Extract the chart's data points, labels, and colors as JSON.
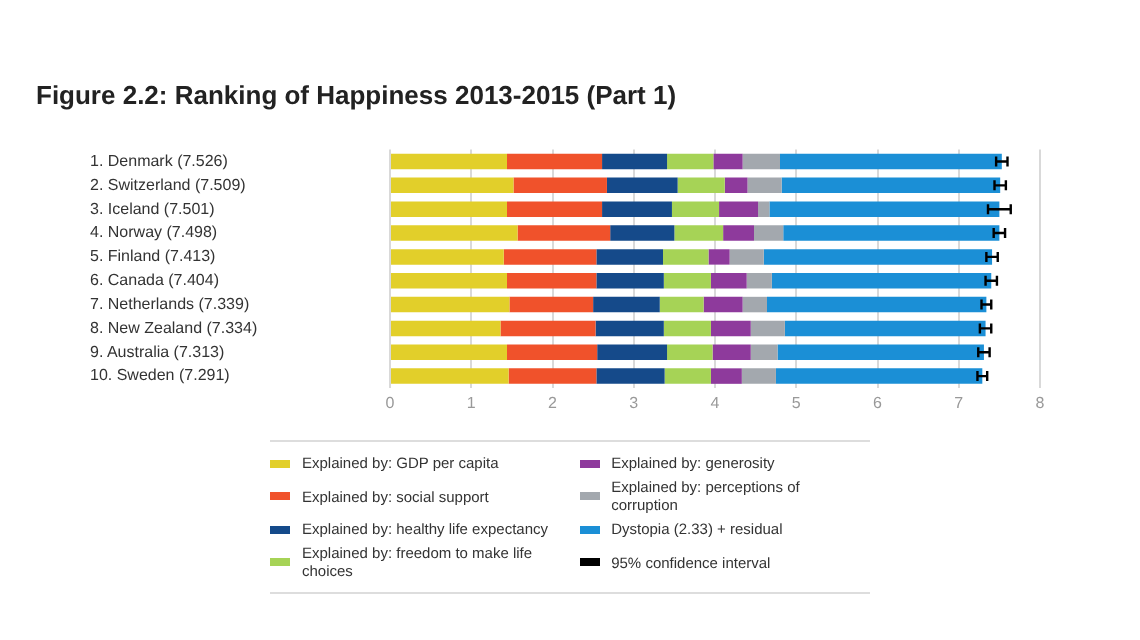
{
  "chart_data": {
    "type": "bar",
    "orientation": "horizontal",
    "stacked": true,
    "title": "Figure 2.2: Ranking of Happiness 2013-2015 (Part 1)",
    "categories": [
      "1. Denmark (7.526)",
      "2. Switzerland (7.509)",
      "3. Iceland (7.501)",
      "4. Norway (7.498)",
      "5. Finland (7.413)",
      "6. Canada (7.404)",
      "7. Netherlands (7.339)",
      "8. New Zealand (7.334)",
      "9. Australia (7.313)",
      "10. Sweden (7.291)"
    ],
    "series": [
      {
        "name": "Explained by: GDP per capita",
        "color": "#e2cf2a",
        "values": [
          1.44,
          1.52,
          1.44,
          1.57,
          1.4,
          1.44,
          1.47,
          1.36,
          1.44,
          1.46
        ]
      },
      {
        "name": "Explained by: social support",
        "color": "#f0522b",
        "values": [
          1.17,
          1.15,
          1.17,
          1.14,
          1.14,
          1.1,
          1.03,
          1.17,
          1.11,
          1.08
        ]
      },
      {
        "name": "Explained by: healthy life expectancy",
        "color": "#154a8a",
        "values": [
          0.8,
          0.87,
          0.86,
          0.79,
          0.82,
          0.83,
          0.82,
          0.84,
          0.86,
          0.84
        ]
      },
      {
        "name": "Explained by: freedom to make life choices",
        "color": "#a6d356",
        "values": [
          0.57,
          0.58,
          0.58,
          0.6,
          0.56,
          0.58,
          0.54,
          0.58,
          0.56,
          0.57
        ]
      },
      {
        "name": "Explained by: generosity",
        "color": "#8e3a9c",
        "values": [
          0.36,
          0.28,
          0.48,
          0.38,
          0.26,
          0.44,
          0.48,
          0.49,
          0.47,
          0.38
        ]
      },
      {
        "name": "Explained by: perceptions of corruption",
        "color": "#a3a8ae",
        "values": [
          0.46,
          0.42,
          0.14,
          0.36,
          0.42,
          0.31,
          0.3,
          0.42,
          0.33,
          0.42
        ]
      },
      {
        "name": "Dystopia (2.33) + residual",
        "color": "#1b8fd6",
        "values": [
          2.73,
          2.69,
          2.83,
          2.66,
          2.81,
          2.7,
          2.7,
          2.47,
          2.54,
          2.54
        ],
        "errors": [
          0.07,
          0.07,
          0.14,
          0.07,
          0.07,
          0.07,
          0.06,
          0.07,
          0.07,
          0.06
        ]
      }
    ],
    "annotations": [
      "95% confidence interval"
    ],
    "xlim": [
      0,
      8
    ],
    "xticks": [
      0,
      1,
      2,
      3,
      4,
      5,
      6,
      7,
      8
    ],
    "grid": "x",
    "legend": "bottom"
  }
}
